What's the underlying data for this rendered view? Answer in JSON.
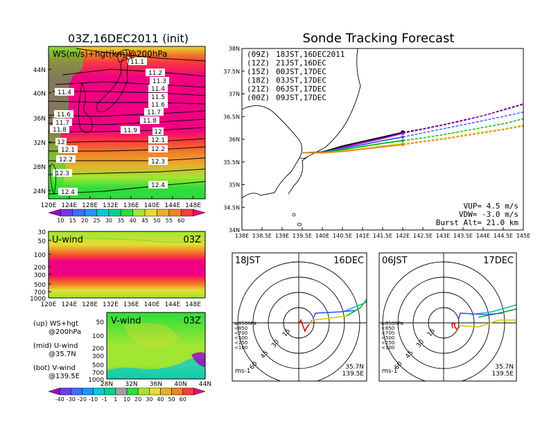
{
  "left_title": "03Z,16DEC2011 (init)",
  "right_title": "Sonde Tracking Forecast",
  "ws_map": {
    "label": "WS(m/s)+hgt(km)@200hPa",
    "lon_ticks": [
      "120E",
      "124E",
      "128E",
      "132E",
      "136E",
      "140E",
      "144E",
      "148E"
    ],
    "lat_ticks": [
      "44N",
      "40N",
      "36N",
      "32N",
      "28N",
      "24N"
    ],
    "contour_labels": [
      "11.1",
      "11.2",
      "11.3",
      "11.4",
      "11.4",
      "11.5",
      "11.6",
      "11.6",
      "11.7",
      "11.7",
      "11.8",
      "11.8",
      "11.9",
      "12",
      "12",
      "12.1",
      "12.1",
      "12.2",
      "12.2",
      "12.3",
      "12.3",
      "12.4",
      "12.4"
    ],
    "colorbar_ticks": [
      "10",
      "15",
      "20",
      "25",
      "30",
      "35",
      "40",
      "45",
      "50",
      "55",
      "60"
    ],
    "colorbar_colors": [
      "#a000c8",
      "#6e3cf0",
      "#3c6eff",
      "#1e96ff",
      "#00c8dc",
      "#00d28c",
      "#2edc3c",
      "#a0e632",
      "#e6dc32",
      "#e6af2d",
      "#f08228",
      "#fa3c3c",
      "#f00082"
    ]
  },
  "uwind": {
    "label": "U-wind",
    "time": "03Z",
    "lev_ticks": [
      "30",
      "50",
      "100",
      "200",
      "300",
      "500",
      "700",
      "1000"
    ],
    "lon_ticks": [
      "120E",
      "124E",
      "128E",
      "132E",
      "136E",
      "140E",
      "144E",
      "148E"
    ]
  },
  "vwind": {
    "label": "V-wind",
    "time": "03Z",
    "lev_ticks": [
      "50",
      "100",
      "200",
      "300",
      "500",
      "700",
      "1000"
    ],
    "lat_ticks": [
      "28N",
      "32N",
      "36N",
      "40N",
      "44N"
    ]
  },
  "legend_text": {
    "up1": "(up) WS+hgt",
    "up2": "@200hPa",
    "mid1": "(mid) U-wind",
    "mid2": "@35.7N",
    "bot1": "(bot) V-wind",
    "bot2": "@139.5E"
  },
  "bottom_colorbar": {
    "ticks": [
      "-40",
      "-30",
      "-20",
      "-10",
      "-1",
      "1",
      "10",
      "20",
      "30",
      "40",
      "50",
      "60"
    ],
    "colors": [
      "#a000c8",
      "#6e3cf0",
      "#3c6eff",
      "#1e96ff",
      "#00c8dc",
      "#00d28c",
      "#a0a0a0",
      "#2edc3c",
      "#a0e632",
      "#e6dc32",
      "#e6af2d",
      "#f08228",
      "#fa3c3c",
      "#f00082"
    ]
  },
  "track": {
    "lat_ticks": [
      "38N",
      "37.5N",
      "37N",
      "36.5N",
      "36N",
      "35.5N",
      "35N",
      "34.5N",
      "34N"
    ],
    "lon_ticks": [
      "138E",
      "138.5E",
      "139E",
      "139.5E",
      "140E",
      "140.5E",
      "141E",
      "141.5E",
      "142E",
      "142.5E",
      "143E",
      "143.5E",
      "144E",
      "144.5E",
      "145E"
    ],
    "legend": [
      {
        "code": "(09Z)",
        "label": "18JST,16DEC2011",
        "color": "#000000"
      },
      {
        "code": "(12Z)",
        "label": "21JST,16DEC",
        "color": "#a000c8"
      },
      {
        "code": "(15Z)",
        "label": "00JST,17DEC",
        "color": "#3c50ff"
      },
      {
        "code": "(18Z)",
        "label": "03JST,17DEC",
        "color": "#00b400"
      },
      {
        "code": "(21Z)",
        "label": "06JST,17DEC",
        "color": "#d2c800"
      },
      {
        "code": "(00Z)",
        "label": "09JST,17DEC",
        "color": "#f08228"
      }
    ],
    "vup": "VUP= 4.5 m/s",
    "vdw": "VDW= -3.0 m/s",
    "burst": "Burst Alt= 21.0 km"
  },
  "hodo": [
    {
      "time": "18JST",
      "date": "16DEC",
      "lat": "35.7N",
      "lon": "139.5E",
      "unit": "ms-1"
    },
    {
      "time": "06JST",
      "date": "17DEC",
      "lat": "35.7N",
      "lon": "139.5E",
      "unit": "ms-1"
    }
  ],
  "hodo_rings": [
    "15",
    "30",
    "45",
    "60"
  ],
  "hodo_levels": [
    {
      "label": "≥850hPa",
      "color": "#dc0000"
    },
    {
      "label": "<850",
      "color": "#f08228"
    },
    {
      "label": "<700",
      "color": "#d2c800"
    },
    {
      "label": "<500",
      "color": "#00b400"
    },
    {
      "label": "<250",
      "color": "#00b4dc"
    },
    {
      "label": "<100",
      "color": "#3c50ff"
    }
  ],
  "chart_data": {
    "type": "line",
    "title": "Sonde Tracking Forecast",
    "xlabel": "",
    "ylabel": "",
    "xlim": [
      138,
      145
    ],
    "ylim": [
      34,
      38
    ],
    "series": [
      {
        "name": "18JST,16DEC2011",
        "color": "#000000",
        "x": [
          139.5,
          140.0,
          140.5,
          141.0,
          141.5,
          142.0,
          142.5,
          143.0,
          143.5,
          144.0,
          144.5,
          145.0
        ],
        "y": [
          35.7,
          35.72,
          35.85,
          35.95,
          36.05,
          36.15,
          36.23,
          36.32,
          36.42,
          36.52,
          36.65,
          36.78
        ]
      },
      {
        "name": "21JST,16DEC",
        "color": "#a000c8",
        "x": [
          139.5,
          140.0,
          140.5,
          141.0,
          141.5,
          142.0,
          142.5,
          143.0,
          143.5,
          144.0,
          144.5,
          145.0
        ],
        "y": [
          35.7,
          35.71,
          35.82,
          35.92,
          36.02,
          36.13,
          36.22,
          36.31,
          36.41,
          36.52,
          36.64,
          36.77
        ]
      },
      {
        "name": "00JST,17DEC",
        "color": "#3c50ff",
        "x": [
          139.5,
          140.0,
          140.5,
          141.0,
          141.5,
          142.0,
          142.5,
          143.0,
          143.5,
          144.0,
          144.5,
          145.0
        ],
        "y": [
          35.7,
          35.71,
          35.8,
          35.88,
          35.97,
          36.05,
          36.14,
          36.23,
          36.32,
          36.41,
          36.5,
          36.6
        ]
      },
      {
        "name": "03JST,17DEC",
        "color": "#00b400",
        "x": [
          139.5,
          140.0,
          140.5,
          141.0,
          141.5,
          142.0,
          142.5,
          143.0,
          143.5,
          144.0,
          144.5,
          145.0
        ],
        "y": [
          35.7,
          35.71,
          35.77,
          35.84,
          35.91,
          35.97,
          36.03,
          36.1,
          36.18,
          36.26,
          36.34,
          36.45
        ]
      },
      {
        "name": "06JST,17DEC",
        "color": "#d2c800",
        "x": [
          139.5,
          140.0,
          140.5,
          141.0,
          141.5,
          142.0,
          142.5,
          143.0,
          143.5,
          144.0,
          144.5,
          145.0
        ],
        "y": [
          35.7,
          35.7,
          35.74,
          35.79,
          35.85,
          35.9,
          35.96,
          36.02,
          36.09,
          36.16,
          36.23,
          36.31
        ]
      },
      {
        "name": "09JST,17DEC",
        "color": "#f08228",
        "x": [
          139.5,
          140.0,
          140.5,
          141.0,
          141.5,
          142.0,
          142.5,
          143.0,
          143.5,
          144.0,
          144.5,
          145.0
        ],
        "y": [
          35.7,
          35.7,
          35.73,
          35.78,
          35.83,
          35.88,
          35.94,
          36.0,
          36.07,
          36.14,
          36.21,
          36.29
        ]
      }
    ]
  }
}
